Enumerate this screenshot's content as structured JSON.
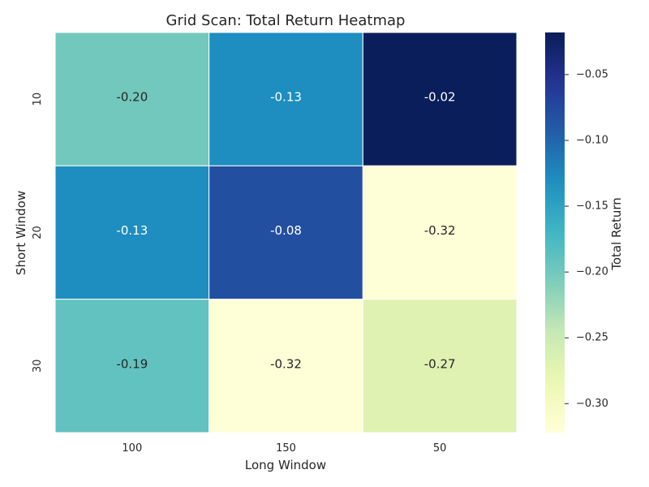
{
  "chart_data": {
    "type": "heatmap",
    "title": "Grid Scan: Total Return Heatmap",
    "xlabel": "Long Window",
    "ylabel": "Short Window",
    "x_categories": [
      "100",
      "150",
      "50"
    ],
    "y_categories": [
      "10",
      "20",
      "30"
    ],
    "values": [
      [
        -0.2,
        -0.13,
        -0.02
      ],
      [
        -0.13,
        -0.08,
        -0.32
      ],
      [
        -0.19,
        -0.32,
        -0.27
      ]
    ],
    "value_labels": [
      [
        "-0.20",
        "-0.13",
        "-0.02"
      ],
      [
        "-0.13",
        "-0.08",
        "-0.32"
      ],
      [
        "-0.19",
        "-0.32",
        "-0.27"
      ]
    ],
    "colormap": "YlGnBu",
    "vmin": -0.322,
    "vmax": -0.018,
    "colorbar": {
      "label": "Total Return",
      "ticks": [
        -0.05,
        -0.1,
        -0.15,
        -0.2,
        -0.25,
        -0.3
      ],
      "tick_labels": [
        "−0.05",
        "−0.10",
        "−0.15",
        "−0.20",
        "−0.25",
        "−0.30"
      ]
    },
    "grid": false
  }
}
